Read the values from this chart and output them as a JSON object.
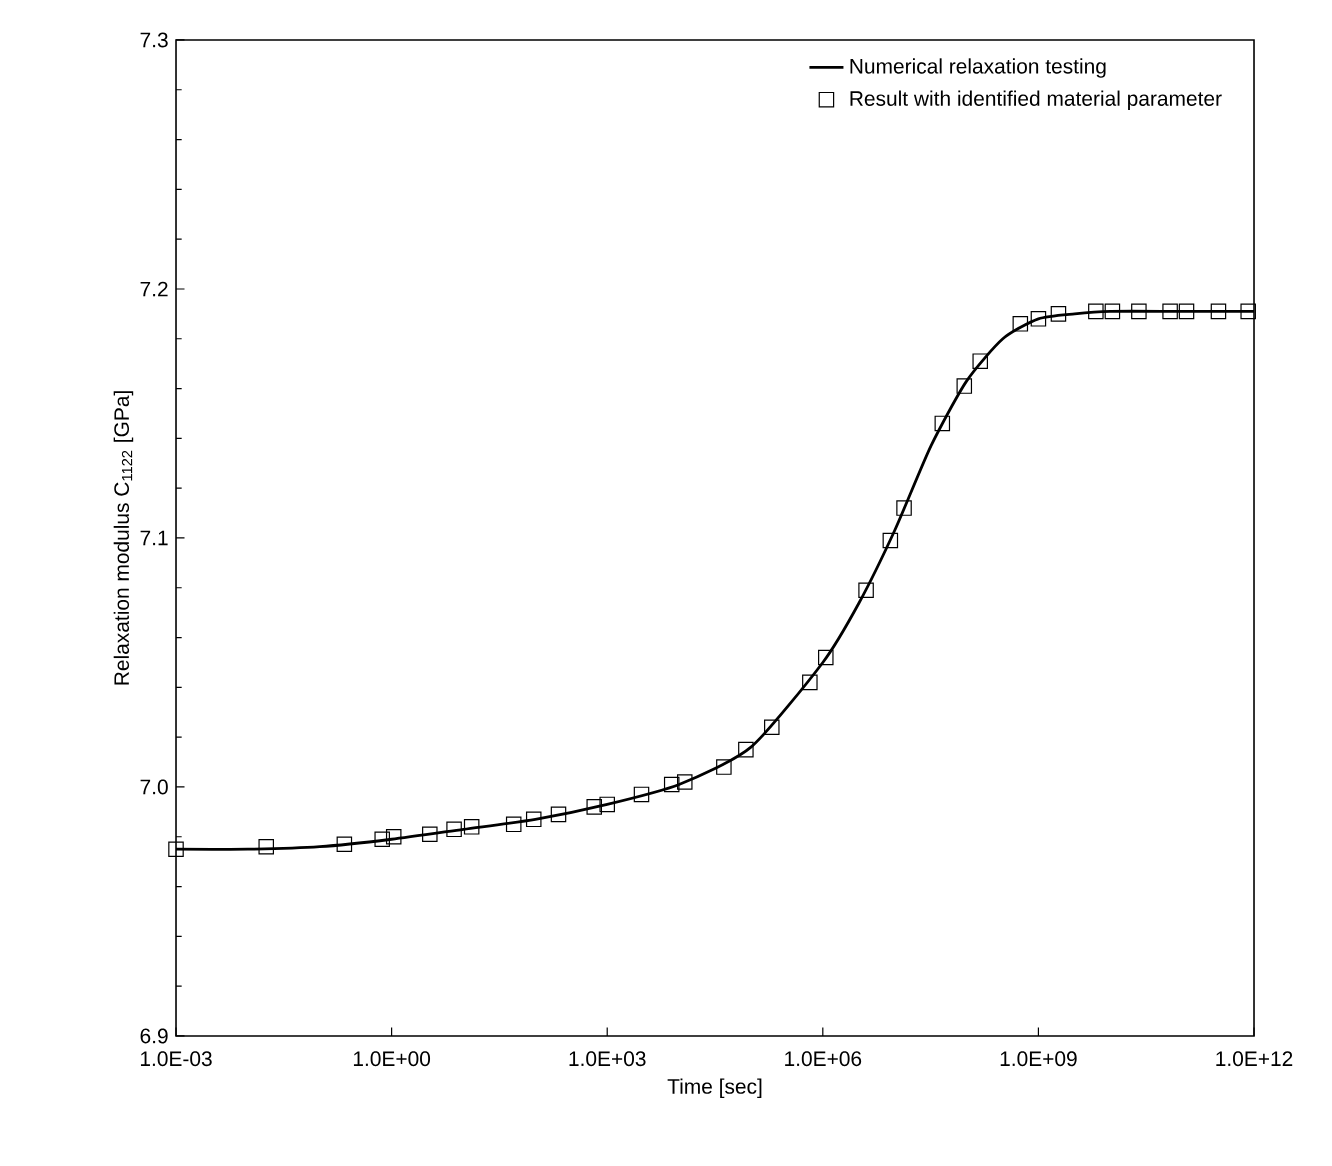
{
  "chart_data": {
    "type": "line",
    "xlabel": "Time [sec]",
    "ylabel": "Relaxation modulus C$_{1122}$ [GPa]",
    "log": "x",
    "grid": false,
    "legend": "top right",
    "xlim": [
      0.001,
      1000000000000.0
    ],
    "ylim": [
      6.9,
      7.3
    ],
    "xticks": [
      {
        "value": 0.001,
        "label": "1.0E-03"
      },
      {
        "value": 1,
        "label": "1.0E+00"
      },
      {
        "value": 1000,
        "label": "1.0E+03"
      },
      {
        "value": 1000000,
        "label": "1.0E+06"
      },
      {
        "value": 1000000000,
        "label": "1.0E+09"
      },
      {
        "value": 1000000000000,
        "label": "1.0E+12"
      }
    ],
    "yticks": [
      {
        "value": 6.9,
        "label": "6.9"
      },
      {
        "value": 7.0,
        "label": "7.0"
      },
      {
        "value": 7.1,
        "label": "7.1"
      },
      {
        "value": 7.2,
        "label": "7.2"
      },
      {
        "value": 7.3,
        "label": "7.3"
      }
    ],
    "series": [
      {
        "name": "Numerical relaxation testing",
        "type": "line",
        "color": "#000000",
        "line_style": "solid",
        "x": [
          0.001,
          0.01,
          0.1,
          1,
          10,
          100,
          1000,
          10000,
          100000,
          1000000,
          3200000,
          10000000,
          32000000,
          100000000,
          320000000,
          1000000000,
          3200000000,
          10000000000,
          100000000000,
          1000000000000
        ],
        "values": [
          6.975,
          6.975,
          6.976,
          6.979,
          6.983,
          6.987,
          6.993,
          7.001,
          7.016,
          7.05,
          7.074,
          7.103,
          7.137,
          7.163,
          7.18,
          7.188,
          7.19,
          7.191,
          7.191,
          7.191
        ]
      },
      {
        "name": "Result with identified material parameter",
        "type": "scatter",
        "color": "#000000",
        "marker": "square",
        "x": [
          0.001,
          0.018,
          0.22,
          0.74,
          1.07,
          3.4,
          7.4,
          13,
          50,
          95,
          210,
          660,
          1000,
          3000,
          7900,
          12000,
          42000,
          85000,
          195000,
          660000,
          1100000,
          4000000,
          8700000,
          13500000,
          46000000,
          93000000,
          155000000,
          560000000,
          1000000000,
          1900000000,
          6300000000,
          10700000000,
          25000000000,
          68000000000,
          115000000000,
          320000000000,
          830000000000
        ],
        "values": [
          6.975,
          6.976,
          6.977,
          6.979,
          6.98,
          6.981,
          6.983,
          6.984,
          6.985,
          6.987,
          6.989,
          6.992,
          6.993,
          6.997,
          7.001,
          7.002,
          7.008,
          7.015,
          7.024,
          7.042,
          7.052,
          7.079,
          7.099,
          7.112,
          7.146,
          7.161,
          7.171,
          7.186,
          7.188,
          7.19,
          7.191,
          7.191,
          7.191,
          7.191,
          7.191,
          7.191,
          7.191
        ]
      }
    ]
  }
}
